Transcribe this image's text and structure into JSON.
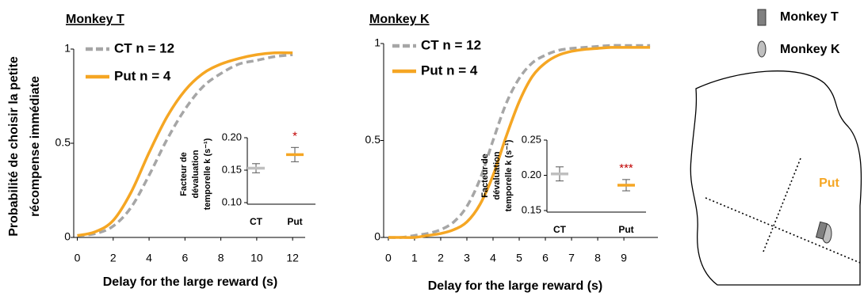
{
  "chart_data": [
    {
      "type": "line",
      "title": "Monkey T",
      "xlabel": "Delay for the large reward (s)",
      "ylabel": [
        "Probabilité de choisir la petite",
        "récompense immédiate"
      ],
      "x": [
        0,
        1,
        2,
        3,
        4,
        5,
        6,
        7,
        8,
        9,
        10,
        11,
        12
      ],
      "series": [
        {
          "name": "CT n = 12",
          "color": "#a6a6a6",
          "dashed": true,
          "values": [
            0.01,
            0.02,
            0.06,
            0.16,
            0.33,
            0.52,
            0.68,
            0.8,
            0.87,
            0.92,
            0.94,
            0.96,
            0.97
          ]
        },
        {
          "name": "Put n = 4",
          "color": "#f5a623",
          "dashed": false,
          "values": [
            0.01,
            0.03,
            0.09,
            0.24,
            0.45,
            0.64,
            0.78,
            0.87,
            0.92,
            0.95,
            0.97,
            0.98,
            0.98
          ]
        }
      ],
      "xlim": [
        -0.2,
        12.7
      ],
      "xticks": [
        0,
        2,
        4,
        6,
        8,
        10,
        12
      ],
      "ylim": [
        0,
        1
      ],
      "yticks": [
        0,
        0.5,
        1
      ],
      "legend": "upper left"
    },
    {
      "type": "line",
      "title": "Monkey K",
      "xlabel": "Delay for the large reward (s)",
      "x": [
        0,
        0.5,
        1,
        1.5,
        2,
        2.5,
        3,
        3.5,
        4,
        4.5,
        5,
        5.5,
        6,
        6.5,
        7,
        7.5,
        8,
        8.5,
        9,
        9.5,
        10
      ],
      "series": [
        {
          "name": "CT n = 12",
          "color": "#a6a6a6",
          "dashed": true,
          "values": [
            0,
            0,
            0.01,
            0.02,
            0.04,
            0.08,
            0.16,
            0.3,
            0.5,
            0.69,
            0.82,
            0.9,
            0.94,
            0.965,
            0.975,
            0.98,
            0.985,
            0.99,
            0.99,
            0.99,
            0.99
          ]
        },
        {
          "name": "Put n = 4",
          "color": "#f5a623",
          "dashed": false,
          "values": [
            0,
            0,
            0,
            0.01,
            0.02,
            0.04,
            0.08,
            0.17,
            0.32,
            0.52,
            0.7,
            0.83,
            0.9,
            0.94,
            0.96,
            0.97,
            0.975,
            0.98,
            0.98,
            0.98,
            0.98
          ]
        }
      ],
      "xlim": [
        -0.18,
        10.3
      ],
      "xticks": [
        0,
        1,
        2,
        3,
        4,
        5,
        6,
        7,
        8,
        9
      ],
      "ylim": [
        0,
        1
      ],
      "yticks": [
        0,
        0.5,
        1
      ],
      "legend": "upper left"
    },
    {
      "type": "errorbar",
      "ylabel": [
        "Facteur de",
        "dévaluation",
        "temporelle k (s⁻¹)"
      ],
      "categories": [
        "CT",
        "Put"
      ],
      "values": [
        0.153,
        0.174
      ],
      "errors": [
        0.007,
        0.011
      ],
      "colors": [
        "#bfbfbf",
        "#f5a623"
      ],
      "annotations": [
        null,
        "*"
      ],
      "ylim": [
        0.1,
        0.2
      ],
      "yticks": [
        {
          "value": 0.1,
          "label": "0.10"
        },
        0.15,
        {
          "value": 0.2,
          "label": "0.20"
        }
      ]
    },
    {
      "type": "errorbar",
      "ylabel": [
        "Facteur de",
        "dévaluation",
        "temporelle k (s⁻¹)"
      ],
      "categories": [
        "CT",
        "Put"
      ],
      "values": [
        0.202,
        0.186
      ],
      "errors": [
        0.01,
        0.008
      ],
      "colors": [
        "#bfbfbf",
        "#f5a623"
      ],
      "annotations": [
        null,
        "***"
      ],
      "ylim": [
        0.15,
        0.25
      ],
      "yticks": [
        0.15,
        {
          "value": 0.2,
          "label": "0.20"
        },
        0.25
      ]
    }
  ],
  "diagram": {
    "legend": [
      "Monkey T",
      "Monkey K"
    ],
    "region_label": "Put"
  }
}
